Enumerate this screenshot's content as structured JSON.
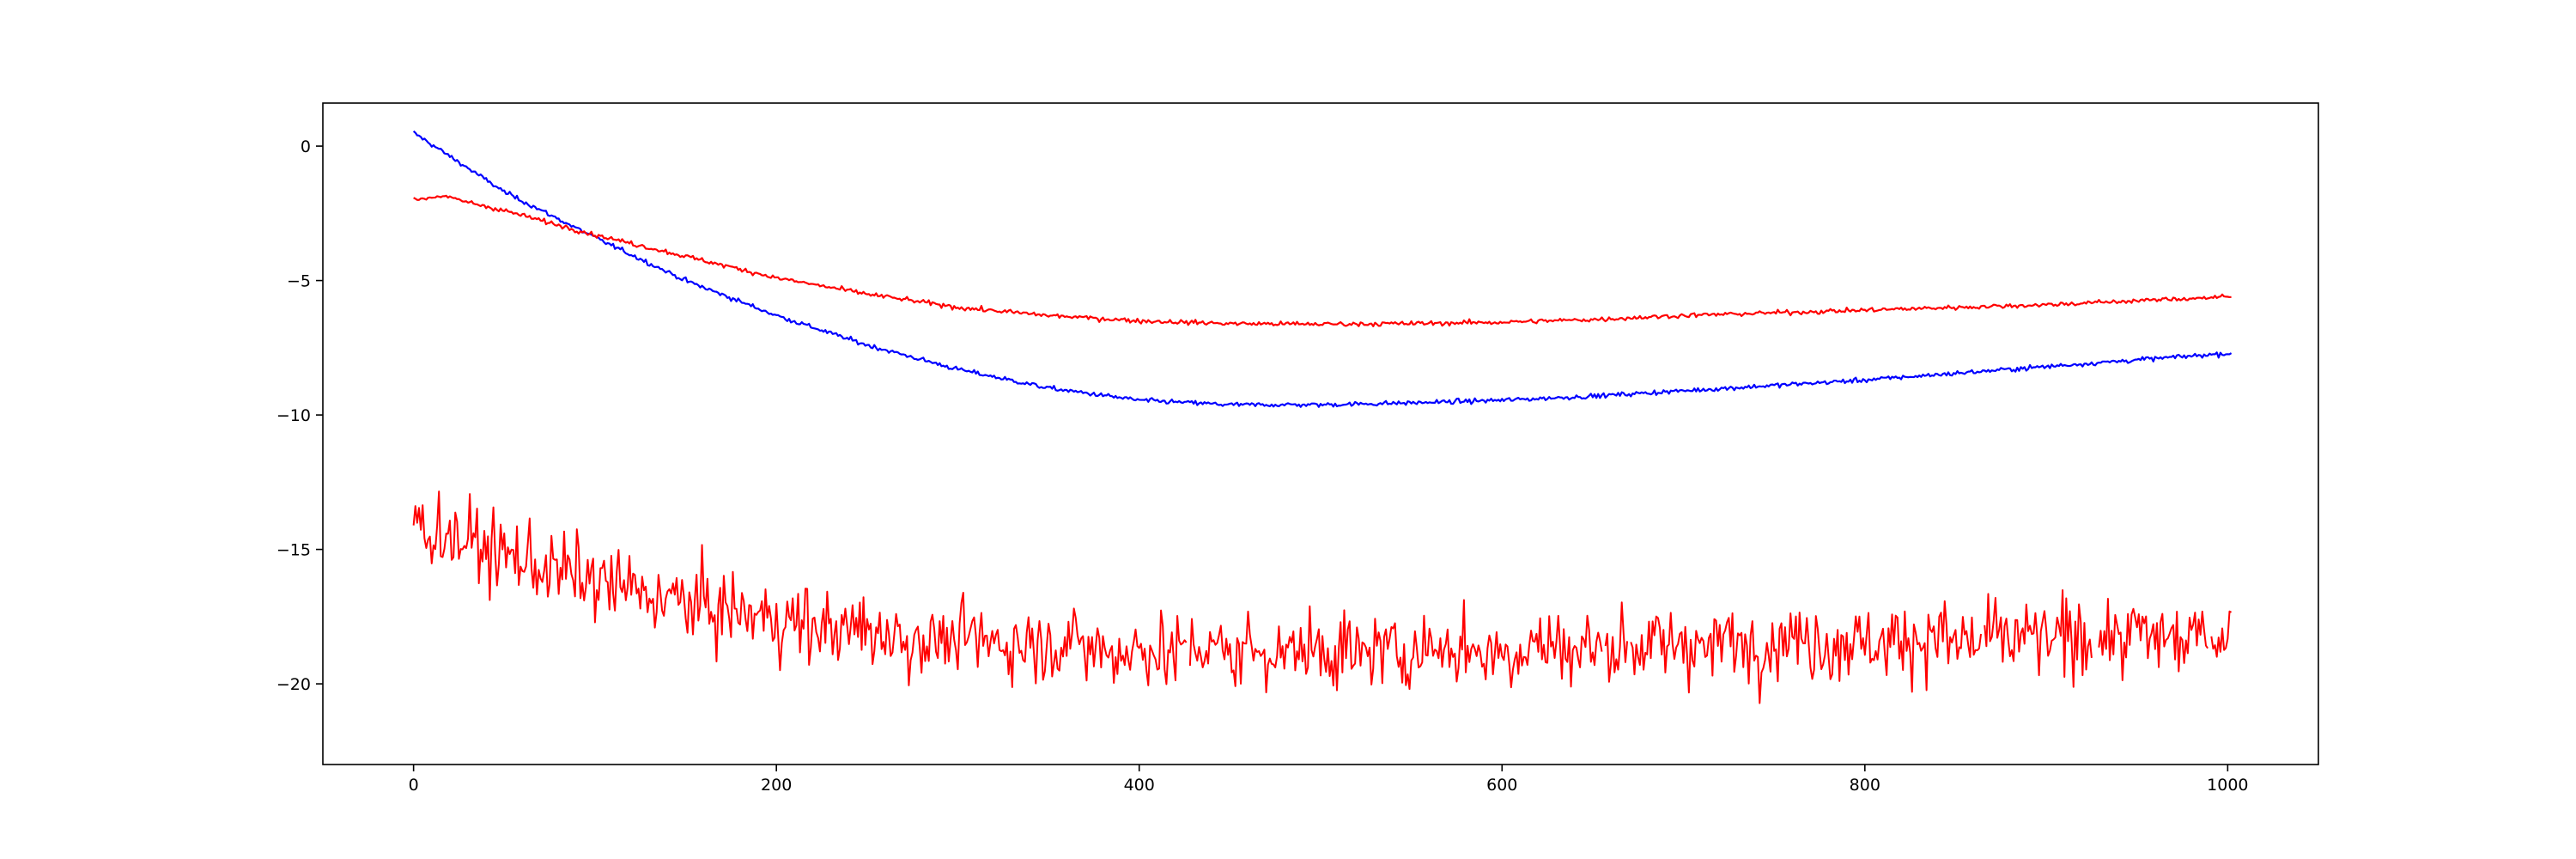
{
  "chart_data": {
    "type": "line",
    "title": "",
    "xlabel": "",
    "ylabel": "",
    "xlim": [
      -50,
      1050
    ],
    "ylim": [
      -23.0,
      1.6
    ],
    "grid": false,
    "x_ticks": [
      0,
      200,
      400,
      600,
      800,
      1000
    ],
    "x_tick_labels": [
      "0",
      "200",
      "400",
      "600",
      "800",
      "1000"
    ],
    "y_ticks": [
      0,
      -5,
      -10,
      -15,
      -20
    ],
    "y_tick_labels": [
      "0",
      "−5",
      "−10",
      "−15",
      "−20"
    ],
    "x": {
      "start": 0,
      "end": 1002,
      "count": 1003
    },
    "series": [
      {
        "color": "#0000ff",
        "noise": 0.06,
        "keypoints": [
          [
            0,
            0.5
          ],
          [
            50,
            -1.7
          ],
          [
            100,
            -3.4
          ],
          [
            150,
            -5.0
          ],
          [
            200,
            -6.3
          ],
          [
            250,
            -7.4
          ],
          [
            300,
            -8.3
          ],
          [
            350,
            -9.0
          ],
          [
            400,
            -9.45
          ],
          [
            450,
            -9.62
          ],
          [
            500,
            -9.62
          ],
          [
            550,
            -9.55
          ],
          [
            600,
            -9.45
          ],
          [
            650,
            -9.3
          ],
          [
            700,
            -9.1
          ],
          [
            750,
            -8.9
          ],
          [
            800,
            -8.7
          ],
          [
            850,
            -8.45
          ],
          [
            900,
            -8.2
          ],
          [
            950,
            -7.95
          ],
          [
            1002,
            -7.7
          ]
        ]
      },
      {
        "color": "#ff0000",
        "noise": 0.06,
        "keypoints": [
          [
            0,
            -2.0
          ],
          [
            15,
            -1.85
          ],
          [
            50,
            -2.4
          ],
          [
            100,
            -3.3
          ],
          [
            150,
            -4.1
          ],
          [
            200,
            -4.9
          ],
          [
            250,
            -5.5
          ],
          [
            300,
            -6.0
          ],
          [
            350,
            -6.3
          ],
          [
            400,
            -6.5
          ],
          [
            450,
            -6.6
          ],
          [
            500,
            -6.62
          ],
          [
            550,
            -6.6
          ],
          [
            600,
            -6.55
          ],
          [
            650,
            -6.45
          ],
          [
            700,
            -6.3
          ],
          [
            750,
            -6.2
          ],
          [
            800,
            -6.1
          ],
          [
            850,
            -6.0
          ],
          [
            900,
            -5.9
          ],
          [
            950,
            -5.75
          ],
          [
            1002,
            -5.6
          ]
        ]
      },
      {
        "color": "#ff0000",
        "noise": 1.0,
        "gaps": true,
        "keypoints": [
          [
            0,
            -14.0
          ],
          [
            50,
            -15.2
          ],
          [
            100,
            -16.2
          ],
          [
            150,
            -17.0
          ],
          [
            200,
            -17.6
          ],
          [
            250,
            -18.1
          ],
          [
            300,
            -18.4
          ],
          [
            400,
            -18.7
          ],
          [
            500,
            -18.8
          ],
          [
            600,
            -18.7
          ],
          [
            700,
            -18.5
          ],
          [
            800,
            -18.4
          ],
          [
            900,
            -18.3
          ],
          [
            1002,
            -18.2
          ]
        ]
      }
    ]
  }
}
